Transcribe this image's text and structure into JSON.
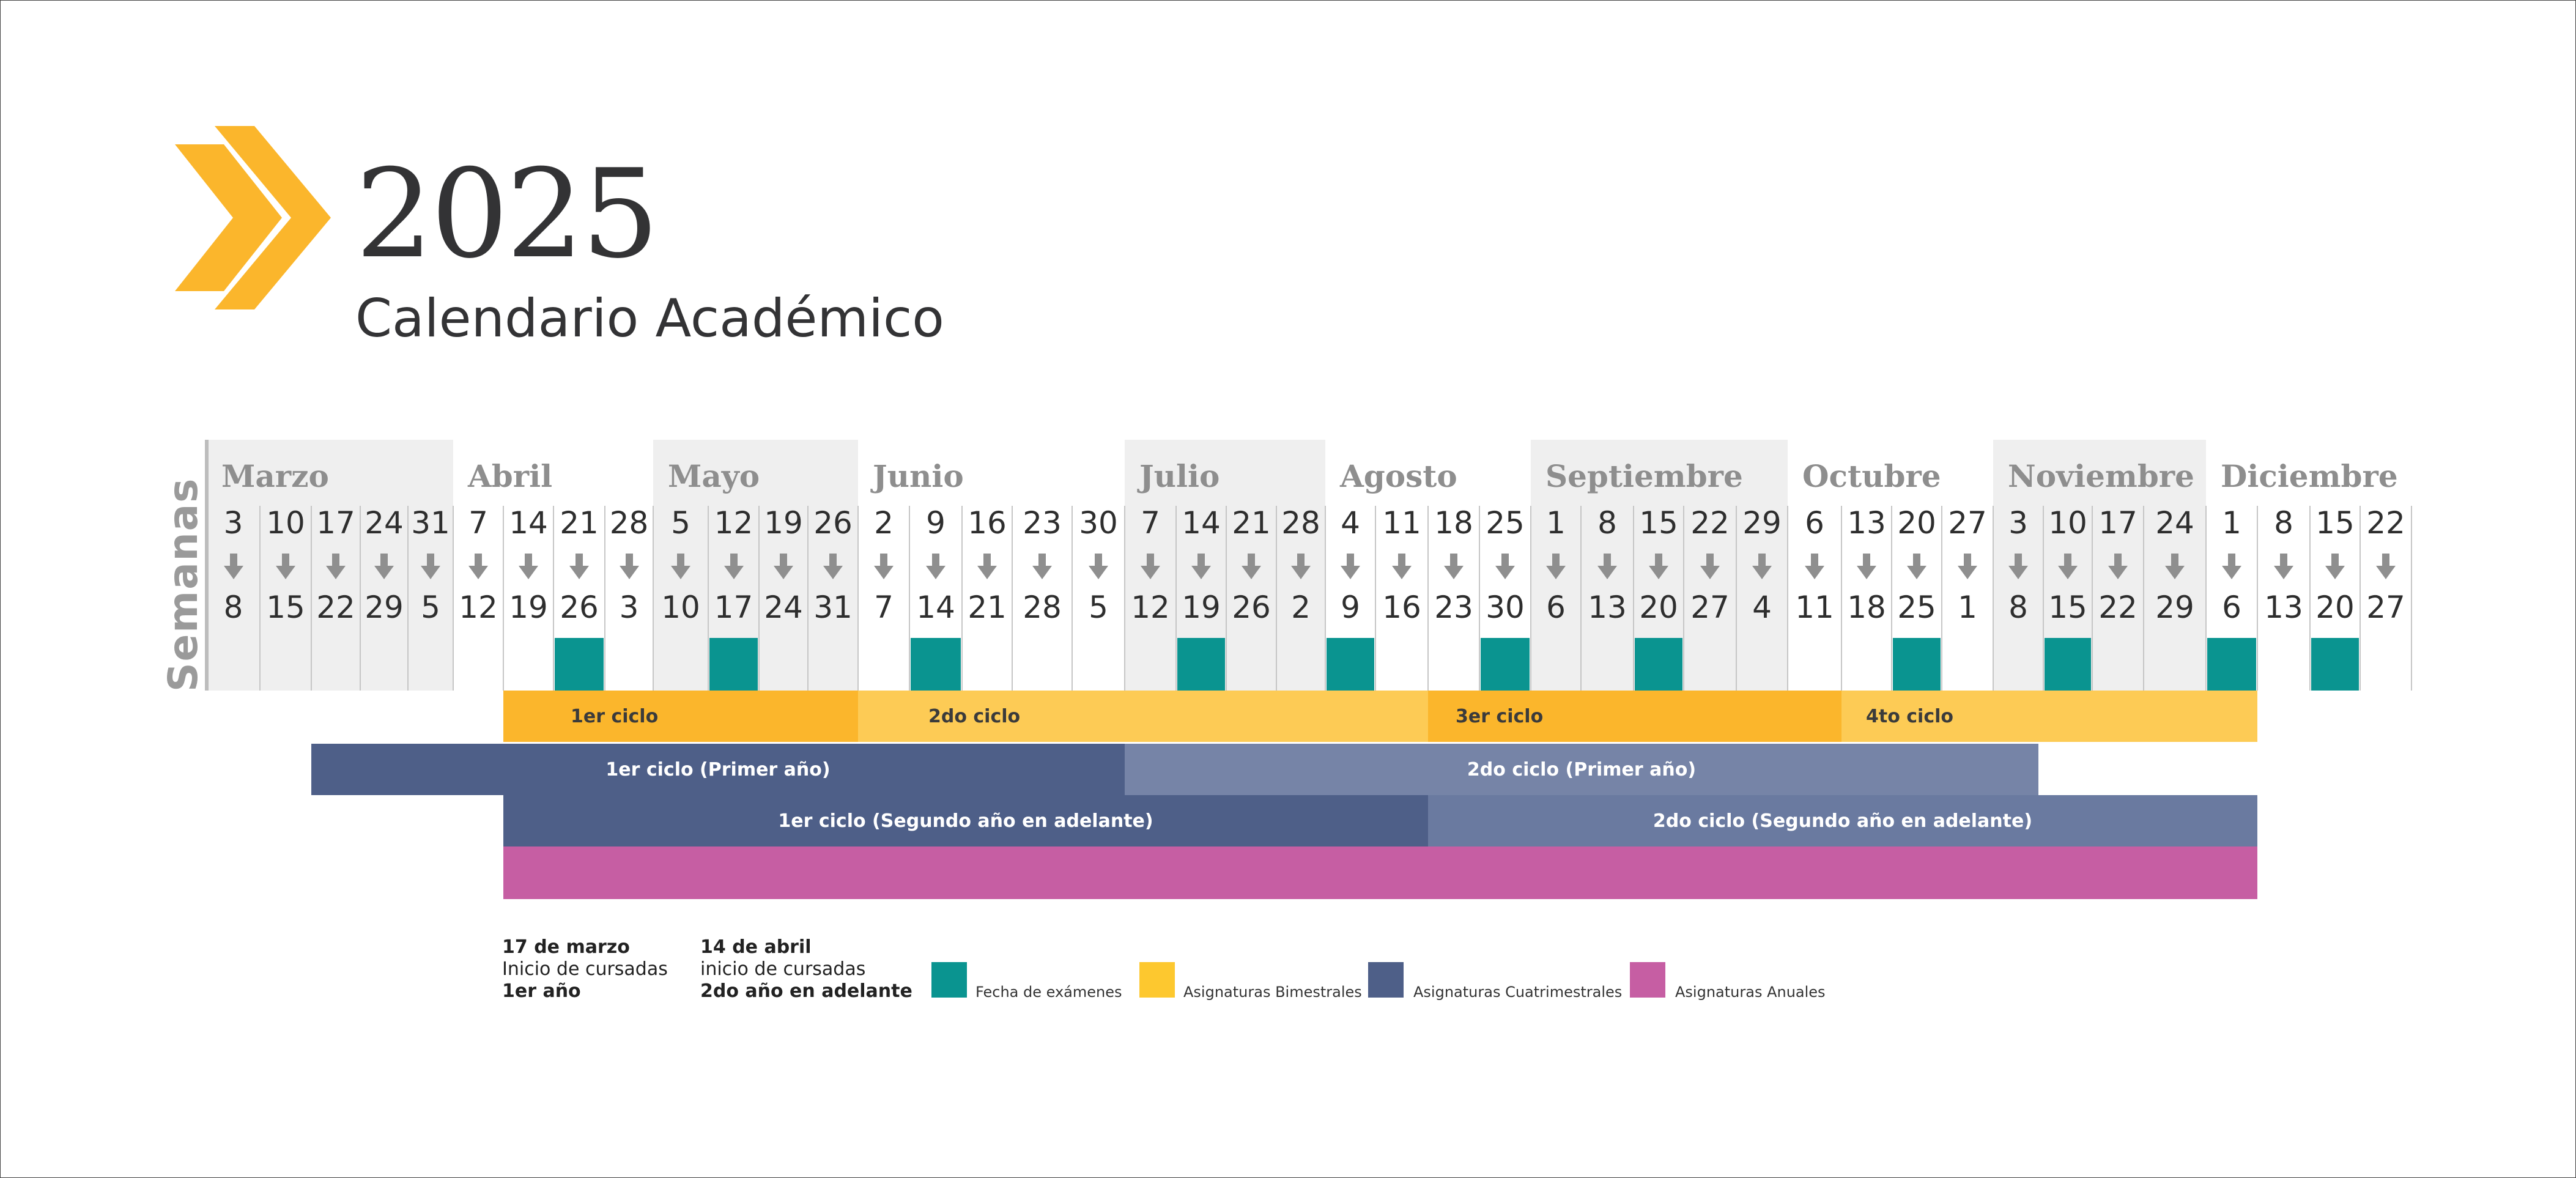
{
  "header": {
    "year": "2025",
    "subtitle": "Calendario Académico"
  },
  "weeks_label": "Semanas",
  "months": [
    "Marzo",
    "Abril",
    "Mayo",
    "Junio",
    "Julio",
    "Agosto",
    "Septiembre",
    "Octubre",
    "Noviembre",
    "Diciembre"
  ],
  "weeks": [
    {
      "start": "3",
      "end": "8"
    },
    {
      "start": "10",
      "end": "15"
    },
    {
      "start": "17",
      "end": "22"
    },
    {
      "start": "24",
      "end": "29"
    },
    {
      "start": "31",
      "end": "5"
    },
    {
      "start": "7",
      "end": "12"
    },
    {
      "start": "14",
      "end": "19"
    },
    {
      "start": "21",
      "end": "26"
    },
    {
      "start": "28",
      "end": "3"
    },
    {
      "start": "5",
      "end": "10"
    },
    {
      "start": "12",
      "end": "17"
    },
    {
      "start": "19",
      "end": "24"
    },
    {
      "start": "26",
      "end": "31"
    },
    {
      "start": "2",
      "end": "7"
    },
    {
      "start": "9",
      "end": "14"
    },
    {
      "start": "16",
      "end": "21"
    },
    {
      "start": "23",
      "end": "28"
    },
    {
      "start": "30",
      "end": "5"
    },
    {
      "start": "7",
      "end": "12"
    },
    {
      "start": "14",
      "end": "19"
    },
    {
      "start": "21",
      "end": "26"
    },
    {
      "start": "28",
      "end": "2"
    },
    {
      "start": "4",
      "end": "9"
    },
    {
      "start": "11",
      "end": "16"
    },
    {
      "start": "18",
      "end": "23"
    },
    {
      "start": "25",
      "end": "30"
    },
    {
      "start": "1",
      "end": "6"
    },
    {
      "start": "8",
      "end": "13"
    },
    {
      "start": "15",
      "end": "20"
    },
    {
      "start": "22",
      "end": "27"
    },
    {
      "start": "29",
      "end": "4"
    },
    {
      "start": "6",
      "end": "11"
    },
    {
      "start": "13",
      "end": "18"
    },
    {
      "start": "20",
      "end": "25"
    },
    {
      "start": "27",
      "end": "1"
    },
    {
      "start": "3",
      "end": "8"
    },
    {
      "start": "10",
      "end": "15"
    },
    {
      "start": "17",
      "end": "22"
    },
    {
      "start": "24",
      "end": "29"
    },
    {
      "start": "1",
      "end": "6"
    },
    {
      "start": "8",
      "end": "13"
    },
    {
      "start": "15",
      "end": "20"
    },
    {
      "start": "22",
      "end": "27"
    }
  ],
  "exam_week_indices": [
    7,
    10,
    14,
    19,
    22,
    25,
    28,
    33,
    36,
    39,
    41
  ],
  "bimestral": [
    "1er ciclo",
    "2do ciclo",
    "3er ciclo",
    "4to ciclo"
  ],
  "cuatrimestral_primer_ano": [
    "1er ciclo (Primer año)",
    "2do ciclo  (Primer año)"
  ],
  "cuatrimestral_segundo_ano": [
    "1er ciclo (Segundo año en adelante)",
    "2do ciclo (Segundo año en adelante)"
  ],
  "notes": {
    "first": {
      "date": "17  de marzo",
      "line2": "Inicio de cursadas",
      "line3": "1er año"
    },
    "second": {
      "date": "14 de  abril",
      "line2": "inicio de cursadas",
      "line3": "2do año en adelante"
    }
  },
  "legend": [
    {
      "label": "Fecha de exámenes",
      "color": "#0a9490"
    },
    {
      "label": "Asignaturas Bimestrales",
      "color": "#fdc82f"
    },
    {
      "label": "Asignaturas Cuatrimestrales",
      "color": "#4e5f88"
    },
    {
      "label": "Asignaturas Anuales",
      "color": "#c65ea3"
    }
  ],
  "colors": {
    "accent": "#fbb62c",
    "bimestral_dark": "#fbb62c",
    "bimestral_light": "#fdcb55",
    "cuatri_dark": "#4e5f88",
    "cuatri_light": "#7684a7",
    "anual": "#c65ea3",
    "exam": "#0a9490"
  }
}
